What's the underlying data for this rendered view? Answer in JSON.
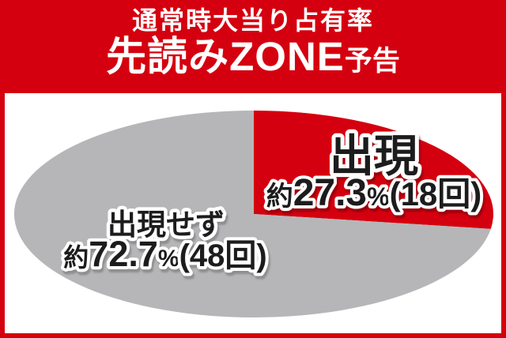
{
  "header": {
    "subtitle": "通常時大当り占有率",
    "title_main": "先読みZONE",
    "title_suffix": "予告"
  },
  "chart_data": {
    "type": "pie",
    "shape": "ellipse",
    "title": "通常時大当り占有率 先読みZONE予告",
    "start_angle_deg": 0,
    "direction": "clockwise",
    "legend": "none",
    "total_count": 66,
    "slices": [
      {
        "label": "出現",
        "value_pct": 27.3,
        "count": 18,
        "approx_prefix": "約",
        "value_text": "27.3",
        "percent_sign": "%",
        "count_text": "(18回)",
        "display": "約27.3%(18回)",
        "color": "#d5000f"
      },
      {
        "label": "出現せず",
        "value_pct": 72.7,
        "count": 48,
        "approx_prefix": "約",
        "value_text": "72.7",
        "percent_sign": "%",
        "count_text": "(48回)",
        "display": "約72.7%(48回)",
        "color": "#b6b6b8"
      }
    ]
  },
  "colors": {
    "header_bg": "#d5000f",
    "border": "#d5000f",
    "content_bg": "#ffffff",
    "header_text": "#ffffff",
    "label_fill": "#1c1c1c",
    "label_outline": "#ffffff"
  }
}
